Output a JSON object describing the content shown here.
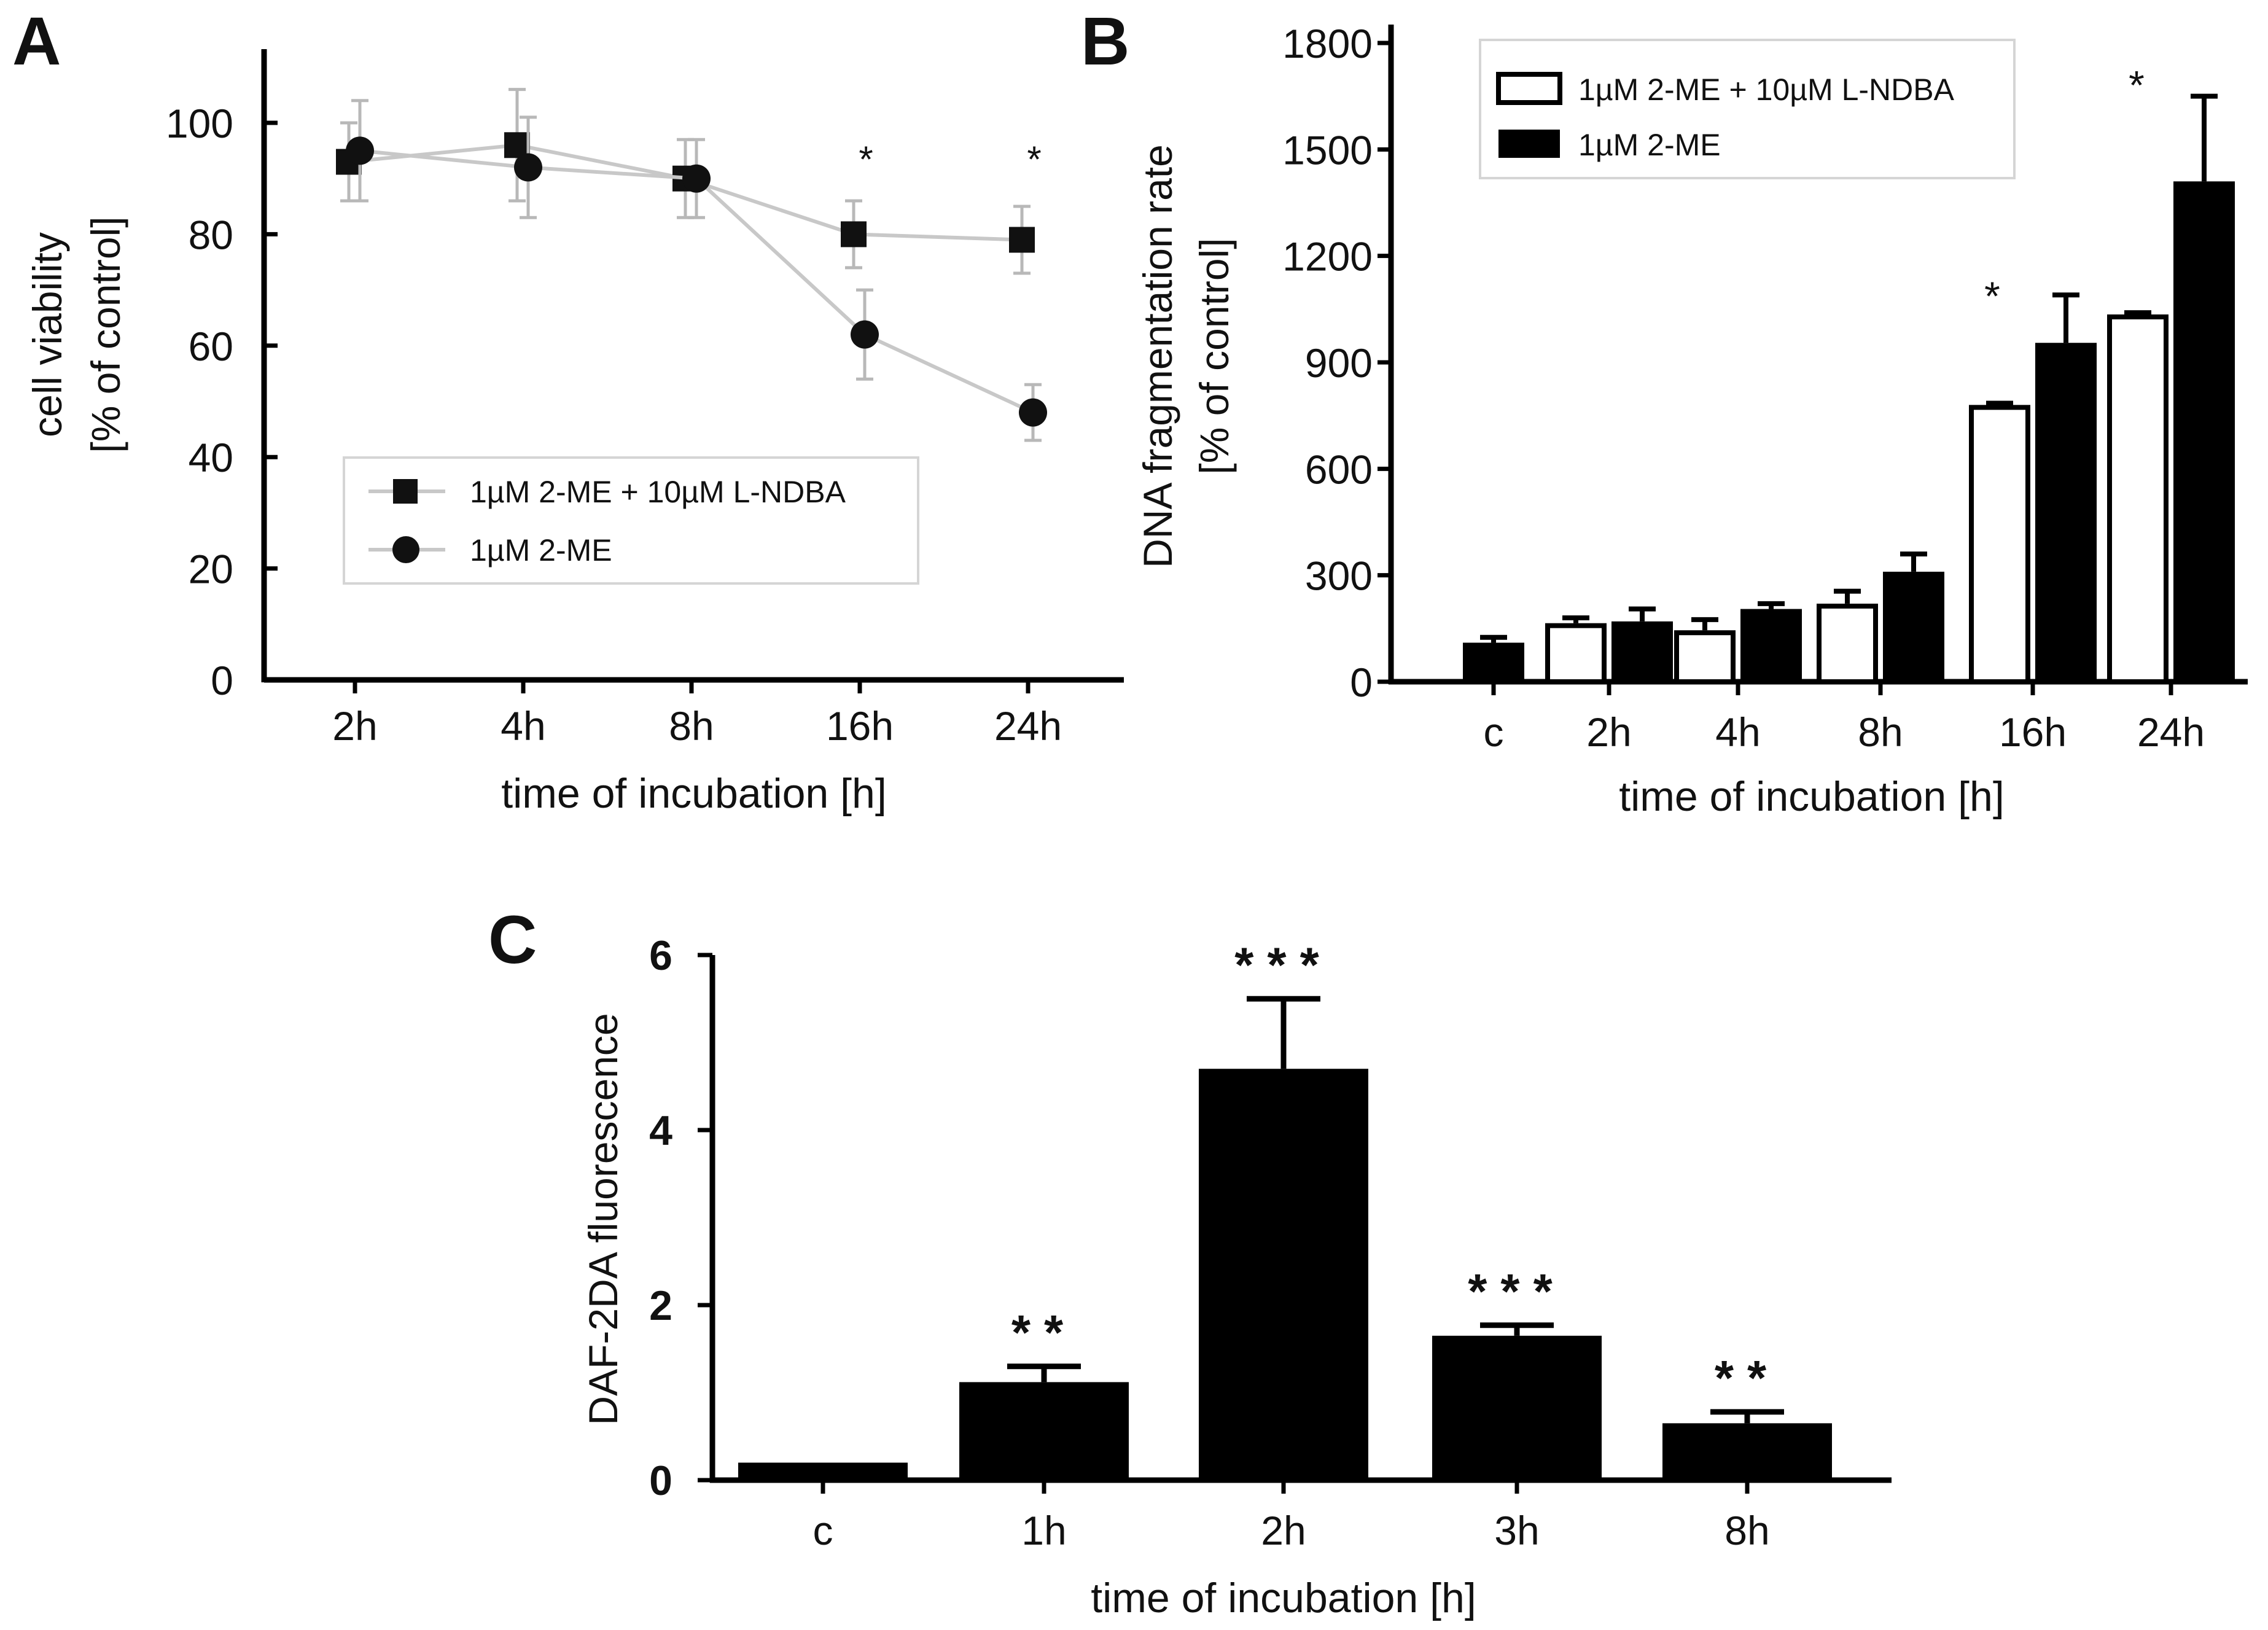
{
  "chart_data": [
    {
      "panel": "A",
      "type": "line",
      "categories": [
        "2h",
        "4h",
        "8h",
        "16h",
        "24h"
      ],
      "xlabel": "time of incubation [h]",
      "ylabel_lines": [
        "cell viability",
        "[% of control]"
      ],
      "ylim": [
        0,
        115
      ],
      "yticks": [
        0,
        20,
        40,
        60,
        80,
        100
      ],
      "series": [
        {
          "name": "1µM 2-ME + 10µM L-NDBA",
          "marker": "square",
          "values": [
            93,
            96,
            90,
            80,
            79
          ],
          "errors": [
            7,
            10,
            7,
            6,
            6
          ]
        },
        {
          "name": "1µM 2-ME",
          "marker": "circle",
          "values": [
            95,
            92,
            90,
            62,
            48
          ],
          "errors": [
            9,
            9,
            7,
            8,
            5
          ]
        }
      ],
      "annotations": [
        {
          "category": "16h",
          "text": "*"
        },
        {
          "category": "24h",
          "text": "*"
        }
      ],
      "legend": "center-right",
      "colors": {
        "line": "#c8c8c8",
        "error": "#b8b8b8",
        "marker": "#111111"
      }
    },
    {
      "panel": "B",
      "type": "bar",
      "categories": [
        "c",
        "2h",
        "4h",
        "8h",
        "16h",
        "24h"
      ],
      "xlabel": "time of incubation [h]",
      "ylabel_lines": [
        "DNA fragmentation rate",
        "[% of control]"
      ],
      "ylim": [
        0,
        1800
      ],
      "yticks": [
        0,
        300,
        600,
        900,
        1200,
        1500,
        1800
      ],
      "series": [
        {
          "name": "1µM 2-ME + 10µM L-NDBA",
          "fill": "white",
          "values": [
            null,
            165,
            145,
            220,
            780,
            1035
          ],
          "errors": [
            null,
            15,
            30,
            35,
            5,
            5
          ]
        },
        {
          "name": "1µM 2-ME",
          "fill": "black",
          "values": [
            110,
            170,
            205,
            310,
            955,
            1410
          ],
          "errors": [
            15,
            35,
            15,
            50,
            135,
            240
          ]
        }
      ],
      "annotations": [
        {
          "category": "16h",
          "text": "*"
        },
        {
          "category": "24h",
          "text": "*"
        }
      ],
      "legend": "top-left",
      "colors": {
        "bar": "#000000",
        "open": "#ffffff"
      }
    },
    {
      "panel": "C",
      "type": "bar",
      "categories": [
        "c",
        "1h",
        "2h",
        "3h",
        "8h"
      ],
      "xlabel": "time of incubation [h]",
      "ylabel": "DAF-2DA fluorescence",
      "ylim": [
        0,
        6
      ],
      "yticks": [
        0,
        2,
        4,
        6
      ],
      "series": [
        {
          "values": [
            0.2,
            1.12,
            4.7,
            1.65,
            0.65
          ],
          "errors": [
            0.02,
            0.18,
            0.8,
            0.12,
            0.13
          ]
        }
      ],
      "annotations": [
        "",
        "**",
        "***",
        "***",
        "**"
      ],
      "colors": {
        "bar": "#000000"
      }
    }
  ]
}
